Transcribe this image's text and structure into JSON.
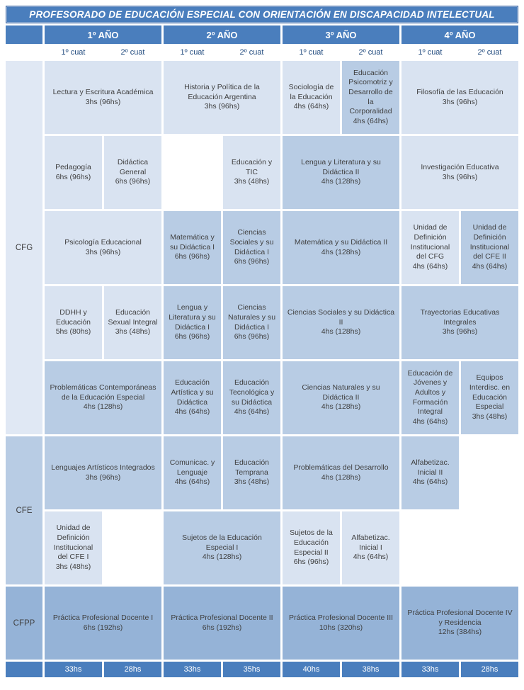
{
  "title": "PROFESORADO DE EDUCACIÓN ESPECIAL CON ORIENTACIÓN EN DISCAPACIDAD INTELECTUAL",
  "colors": {
    "header_blue": "#4a7ebd",
    "cell_light": "#d9e3f1",
    "cell_dark": "#b8cce4",
    "cell_medium": "#95b3d7",
    "label_light": "#e0e8f4",
    "cuat_text": "#1f497d",
    "cell_text": "#3f3f3f"
  },
  "years": [
    "1º AÑO",
    "2º AÑO",
    "3º AÑO",
    "4º AÑO"
  ],
  "cuats": [
    "1º cuat",
    "2º cuat",
    "1º cuat",
    "2º cuat",
    "1º cuat",
    "2º cuat",
    "1º cuat",
    "2º cuat"
  ],
  "group_labels": {
    "cfg": "CFG",
    "cfe": "CFE",
    "cfpp": "CFPP"
  },
  "rows": [
    {
      "cells": [
        {
          "year": 1,
          "cuat": "anual",
          "span": 2,
          "shade": "light",
          "name": "Lectura y Escritura Académica",
          "hours": "3hs (96hs)"
        },
        {
          "year": 2,
          "cuat": "anual",
          "span": 2,
          "shade": "light",
          "name": "Historia y Política de la Educación Argentina",
          "hours": "3hs (96hs)"
        },
        {
          "year": 3,
          "cuat": "1º cuat",
          "span": 1,
          "shade": "light",
          "name": "Sociología de la Educación",
          "hours": "4hs (64hs)"
        },
        {
          "year": 3,
          "cuat": "2º cuat",
          "span": 1,
          "shade": "dark",
          "name": "Educación Psicomotriz y Desarrollo de la Corporalidad",
          "hours": "4hs (64hs)"
        },
        {
          "year": 4,
          "cuat": "anual",
          "span": 2,
          "shade": "light",
          "name": "Filosofía de las Educación",
          "hours": "3hs (96hs)"
        }
      ]
    },
    {
      "cells": [
        {
          "year": 1,
          "cuat": "1º cuat",
          "span": 1,
          "shade": "light",
          "name": "Pedagogía",
          "hours": "6hs (96hs)"
        },
        {
          "year": 1,
          "cuat": "2º cuat",
          "span": 1,
          "shade": "light",
          "name": "Didáctica General",
          "hours": "6hs (96hs)"
        },
        {
          "year": 2,
          "cuat": "2º cuat",
          "span": 1,
          "shade": "light",
          "name": "Educación y TIC",
          "hours": "3hs (48hs)"
        },
        {
          "year": 3,
          "cuat": "anual",
          "span": 2,
          "shade": "dark",
          "name": "Lengua y Literatura y su Didáctica II",
          "hours": "4hs (128hs)"
        },
        {
          "year": 4,
          "cuat": "anual",
          "span": 2,
          "shade": "light",
          "name": "Investigación Educativa",
          "hours": "3hs (96hs)"
        }
      ]
    },
    {
      "cells": [
        {
          "year": 1,
          "cuat": "anual",
          "span": 2,
          "shade": "light",
          "name": "Psicología Educacional",
          "hours": "3hs (96hs)"
        },
        {
          "year": 2,
          "cuat": "1º cuat",
          "span": 1,
          "shade": "dark",
          "name": "Matemática y su Didáctica I",
          "hours": "6hs (96hs)"
        },
        {
          "year": 2,
          "cuat": "2º cuat",
          "span": 1,
          "shade": "dark",
          "name": "Ciencias Sociales y su Didáctica I",
          "hours": "6hs (96hs)"
        },
        {
          "year": 3,
          "cuat": "anual",
          "span": 2,
          "shade": "dark",
          "name": "Matemática y su Didáctica II",
          "hours": "4hs (128hs)"
        },
        {
          "year": 4,
          "cuat": "1º cuat",
          "span": 1,
          "shade": "light",
          "name": "Unidad de Definición Institucional del CFG",
          "hours": "4hs (64hs)"
        },
        {
          "year": 4,
          "cuat": "2º cuat",
          "span": 1,
          "shade": "dark",
          "name": "Unidad de Definición Institucional del CFE II",
          "hours": "4hs (64hs)"
        }
      ]
    },
    {
      "cells": [
        {
          "year": 1,
          "cuat": "1º cuat",
          "span": 1,
          "shade": "light",
          "name": "DDHH y Educación",
          "hours": "5hs (80hs)"
        },
        {
          "year": 1,
          "cuat": "2º cuat",
          "span": 1,
          "shade": "light",
          "name": "Educación Sexual Integral",
          "hours": "3hs (48hs)"
        },
        {
          "year": 2,
          "cuat": "1º cuat",
          "span": 1,
          "shade": "dark",
          "name": "Lengua y Literatura y su Didáctica I",
          "hours": "6hs (96hs)"
        },
        {
          "year": 2,
          "cuat": "2º cuat",
          "span": 1,
          "shade": "dark",
          "name": "Ciencias Naturales y su Didáctica I",
          "hours": "6hs (96hs)"
        },
        {
          "year": 3,
          "cuat": "anual",
          "span": 2,
          "shade": "dark",
          "name": "Ciencias Sociales y su Didáctica II",
          "hours": "4hs (128hs)"
        },
        {
          "year": 4,
          "cuat": "anual",
          "span": 2,
          "shade": "dark",
          "name": "Trayectorias Educativas Integrales",
          "hours": "3hs (96hs)"
        }
      ]
    },
    {
      "cells": [
        {
          "year": 1,
          "cuat": "anual",
          "span": 2,
          "shade": "dark",
          "name": "Problemáticas Contemporáneas de la Educación Especial",
          "hours": "4hs (128hs)"
        },
        {
          "year": 2,
          "cuat": "1º cuat",
          "span": 1,
          "shade": "dark",
          "name": "Educación Artística y su Didáctica",
          "hours": "4hs (64hs)"
        },
        {
          "year": 2,
          "cuat": "2º cuat",
          "span": 1,
          "shade": "dark",
          "name": "Educación Tecnológica y su Didáctica",
          "hours": "4hs (64hs)"
        },
        {
          "year": 3,
          "cuat": "anual",
          "span": 2,
          "shade": "dark",
          "name": "Ciencias Naturales y su Didáctica II",
          "hours": "4hs (128hs)"
        },
        {
          "year": 4,
          "cuat": "1º cuat",
          "span": 1,
          "shade": "dark",
          "name": "Educación de Jóvenes y Adultos y Formación Integral",
          "hours": "4hs (64hs)"
        },
        {
          "year": 4,
          "cuat": "2º cuat",
          "span": 1,
          "shade": "dark",
          "name": "Equipos Interdisc. en Educación Especial",
          "hours": "3hs (48hs)"
        }
      ]
    },
    {
      "cells": [
        {
          "year": 1,
          "cuat": "anual",
          "span": 2,
          "shade": "dark",
          "name": "Lenguajes Artísticos Integrados",
          "hours": "3hs (96hs)"
        },
        {
          "year": 2,
          "cuat": "1º cuat",
          "span": 1,
          "shade": "dark",
          "name": "Comunicac. y Lenguaje",
          "hours": "4hs (64hs)"
        },
        {
          "year": 2,
          "cuat": "2º cuat",
          "span": 1,
          "shade": "dark",
          "name": "Educación Temprana",
          "hours": "3hs (48hs)"
        },
        {
          "year": 3,
          "cuat": "anual",
          "span": 2,
          "shade": "dark",
          "name": "Problemáticas del Desarrollo",
          "hours": "4hs (128hs)"
        },
        {
          "year": 4,
          "cuat": "1º cuat",
          "span": 1,
          "shade": "dark",
          "name": "Alfabetizac. Inicial II",
          "hours": "4hs (64hs)"
        }
      ]
    },
    {
      "cells": [
        {
          "year": 1,
          "cuat": "1º cuat",
          "span": 1,
          "shade": "light",
          "name": "Unidad de Definición Institucional del CFE I",
          "hours": "3hs (48hs)"
        },
        {
          "year": 2,
          "cuat": "anual",
          "span": 2,
          "shade": "dark",
          "name": "Sujetos de la Educación Especial I",
          "hours": "4hs (128hs)"
        },
        {
          "year": 3,
          "cuat": "1º cuat",
          "span": 1,
          "shade": "light",
          "name": "Sujetos de la Educación Especial II",
          "hours": "6hs (96hs)"
        },
        {
          "year": 3,
          "cuat": "2º cuat",
          "span": 1,
          "shade": "light",
          "name": "Alfabetizac. Inicial I",
          "hours": "4hs (64hs)"
        }
      ]
    },
    {
      "cells": [
        {
          "year": 1,
          "cuat": "anual",
          "span": 2,
          "shade": "medium",
          "name": "Práctica Profesional Docente I",
          "hours": "6hs (192hs)"
        },
        {
          "year": 2,
          "cuat": "anual",
          "span": 2,
          "shade": "medium",
          "name": "Práctica Profesional Docente II",
          "hours": "6hs (192hs)"
        },
        {
          "year": 3,
          "cuat": "anual",
          "span": 2,
          "shade": "medium",
          "name": "Práctica Profesional Docente III",
          "hours": "10hs (320hs)"
        },
        {
          "year": 4,
          "cuat": "anual",
          "span": 2,
          "shade": "medium",
          "name": "Práctica Profesional Docente IV y Residencia",
          "hours": "12hs (384hs)"
        }
      ]
    }
  ],
  "totals": [
    "33hs",
    "28hs",
    "33hs",
    "35hs",
    "40hs",
    "38hs",
    "33hs",
    "28hs"
  ]
}
